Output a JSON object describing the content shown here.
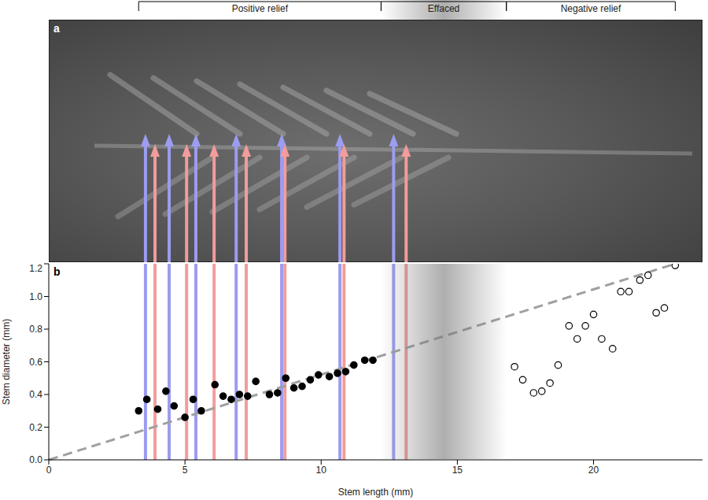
{
  "chart_data": {
    "type": "scatter",
    "panel_labels": [
      "a",
      "b"
    ],
    "x_label": "Stem length (mm)",
    "y_label": "Stem diameter (mm)",
    "xlim": [
      0,
      24
    ],
    "xticks": [
      0,
      5,
      10,
      15,
      20
    ],
    "ylim": [
      0,
      1.2
    ],
    "yticks": [
      {
        "value": 0,
        "label": "0.0"
      },
      0.2,
      0.4,
      0.6,
      0.8,
      {
        "value": 1,
        "label": "1.0"
      },
      1.2
    ],
    "series": [
      {
        "color": "#000000",
        "marker": "circle",
        "x": [
          3.3,
          3.6,
          4.0,
          4.3,
          4.6,
          5.0,
          5.3,
          5.6,
          6.1,
          6.4,
          6.7,
          7.0,
          7.3,
          7.6,
          8.1,
          8.4,
          8.7,
          9.0,
          9.3,
          9.6,
          9.9,
          10.3,
          10.6,
          10.9,
          11.2,
          11.6,
          11.9
        ],
        "values": [
          0.3,
          0.37,
          0.31,
          0.42,
          0.33,
          0.26,
          0.37,
          0.3,
          0.46,
          0.39,
          0.37,
          0.4,
          0.39,
          0.48,
          0.4,
          0.41,
          0.5,
          0.44,
          0.45,
          0.49,
          0.52,
          0.51,
          0.53,
          0.54,
          0.58,
          0.61,
          0.61
        ]
      },
      {
        "color": "#000000",
        "marker": "open_circle",
        "x": [
          17.1,
          17.4,
          17.8,
          18.1,
          18.4,
          18.7,
          19.1,
          19.4,
          19.7,
          20.0,
          20.3,
          20.7,
          21.0,
          21.3,
          21.7,
          22.0,
          22.3,
          22.6,
          23.0
        ],
        "values": [
          0.57,
          0.49,
          0.41,
          0.42,
          0.47,
          0.58,
          0.82,
          0.74,
          0.82,
          0.89,
          0.74,
          0.68,
          1.03,
          1.03,
          1.1,
          1.13,
          0.9,
          0.93,
          1.19
        ]
      }
    ],
    "trend_line": {
      "x": [
        0,
        23
      ],
      "y": [
        0,
        1.2
      ],
      "color": "#a0a0a0",
      "line_style": "dashed"
    },
    "arrows": [
      {
        "color": "#9c9cf0",
        "x": [
          3.55,
          4.42,
          5.4,
          6.88,
          8.55,
          10.69,
          12.66
        ]
      },
      {
        "color": "#f29c9c",
        "x": [
          3.9,
          5.06,
          6.07,
          7.25,
          8.67,
          10.84,
          13.12
        ]
      }
    ],
    "regions": [
      {
        "label": "Positive relief",
        "x": [
          3.3,
          12.2
        ]
      },
      {
        "label": "Effaced",
        "x": [
          12.2,
          16.8
        ]
      },
      {
        "label": "Negative relief",
        "x": [
          16.8,
          23.0
        ]
      }
    ]
  }
}
